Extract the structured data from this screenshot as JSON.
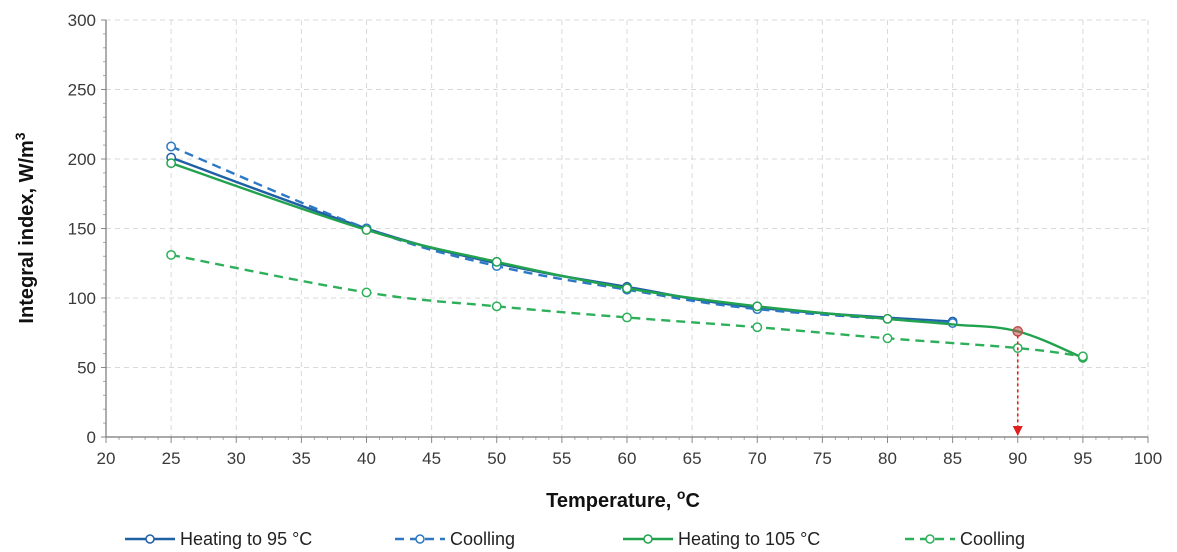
{
  "chart_data": {
    "type": "line",
    "xlabel": "Temperature, ",
    "xlabel_sup": "o",
    "xlabel_unit": "C",
    "ylabel": "Integral index, W/m",
    "ylabel_sup": "3",
    "xlim": [
      20,
      100
    ],
    "ylim": [
      0,
      300
    ],
    "x_ticks": [
      20,
      25,
      30,
      35,
      40,
      45,
      50,
      55,
      60,
      65,
      70,
      75,
      80,
      85,
      90,
      95,
      100
    ],
    "y_ticks": [
      0,
      50,
      100,
      150,
      200,
      250,
      300
    ],
    "grid": true,
    "legend_position": "bottom",
    "series": [
      {
        "name": "Heating to 95 °C",
        "color": "#1f5fa3",
        "dash": false,
        "x": [
          25,
          40,
          50,
          60,
          70,
          85
        ],
        "y": [
          201,
          150,
          125,
          108,
          93,
          83
        ]
      },
      {
        "name": "Coolling",
        "color": "#2c78c4",
        "dash": true,
        "x": [
          25,
          40,
          50,
          60,
          70,
          85
        ],
        "y": [
          209,
          150,
          123,
          106,
          92,
          82
        ]
      },
      {
        "name": "Heating to 105 °C",
        "color": "#22a24f",
        "dash": false,
        "x": [
          25,
          40,
          50,
          60,
          70,
          80,
          85,
          90,
          95
        ],
        "y": [
          197,
          149,
          126,
          107,
          94,
          85,
          81,
          76,
          57
        ],
        "marker_x": [
          25,
          40,
          50,
          60,
          70,
          80,
          95
        ]
      },
      {
        "name": "Coolling",
        "color": "#2eb05a",
        "dash": true,
        "x": [
          25,
          40,
          50,
          60,
          70,
          80,
          90,
          95
        ],
        "y": [
          131,
          104,
          94,
          86,
          79,
          71,
          64,
          58
        ]
      }
    ],
    "annotations": [
      {
        "type": "point",
        "x": 90,
        "y": 76,
        "color": "#c0504d"
      },
      {
        "type": "arrow",
        "x": 90,
        "y_from": 76,
        "y_to": 0,
        "color": "#e02020",
        "dash": true
      }
    ]
  }
}
